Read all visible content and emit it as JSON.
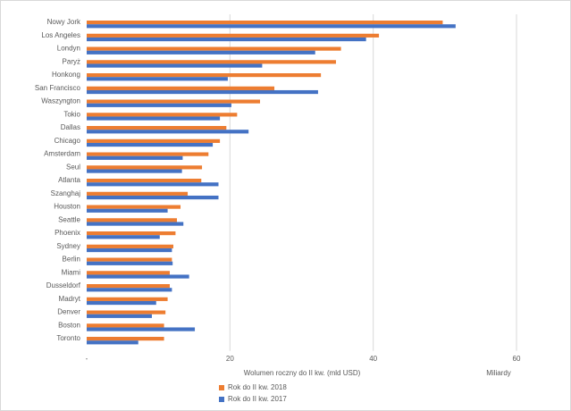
{
  "chart_data": {
    "type": "bar",
    "orientation": "horizontal",
    "categories": [
      "Nowy Jork",
      "Los Angeles",
      "Londyn",
      "Paryż",
      "Honkong",
      "San Francisco",
      "Waszyngton",
      "Tokio",
      "Dallas",
      "Chicago",
      "Amsterdam",
      "Seul",
      "Atlanta",
      "Szanghaj",
      "Houston",
      "Seattle",
      "Phoenix",
      "Sydney",
      "Berlin",
      "Miami",
      "Dusseldorf",
      "Madryt",
      "Denver",
      "Boston",
      "Toronto"
    ],
    "series": [
      {
        "name": "Rok do II kw. 2018",
        "color": "#ED7D31",
        "values": [
          49.7,
          40.8,
          35.5,
          34.8,
          32.7,
          26.2,
          24.2,
          21.0,
          19.5,
          18.6,
          17.0,
          16.1,
          16.0,
          14.1,
          13.1,
          12.6,
          12.4,
          12.1,
          11.9,
          11.6,
          11.6,
          11.3,
          11.0,
          10.8,
          10.8
        ],
        "legend_label": "Rok do II kw. 2018"
      },
      {
        "name": "Rok do II kw. 2017",
        "color": "#4472C4",
        "values": [
          51.5,
          39.0,
          31.9,
          24.5,
          19.7,
          32.3,
          20.2,
          18.6,
          22.6,
          17.6,
          13.4,
          13.3,
          18.4,
          18.4,
          11.3,
          13.5,
          10.2,
          11.9,
          12.0,
          14.3,
          11.9,
          9.7,
          9.1,
          15.1,
          7.2
        ],
        "legend_label": "Rok do II kw. 2017"
      }
    ],
    "xlim": [
      0,
      60
    ],
    "xticks": [
      "-",
      "20",
      "40",
      "60"
    ],
    "xlabel": "Wolumen roczny do II kw. (mld USD)",
    "unit_label": "Miliardy",
    "grid": true,
    "legend_position": "bottom"
  }
}
